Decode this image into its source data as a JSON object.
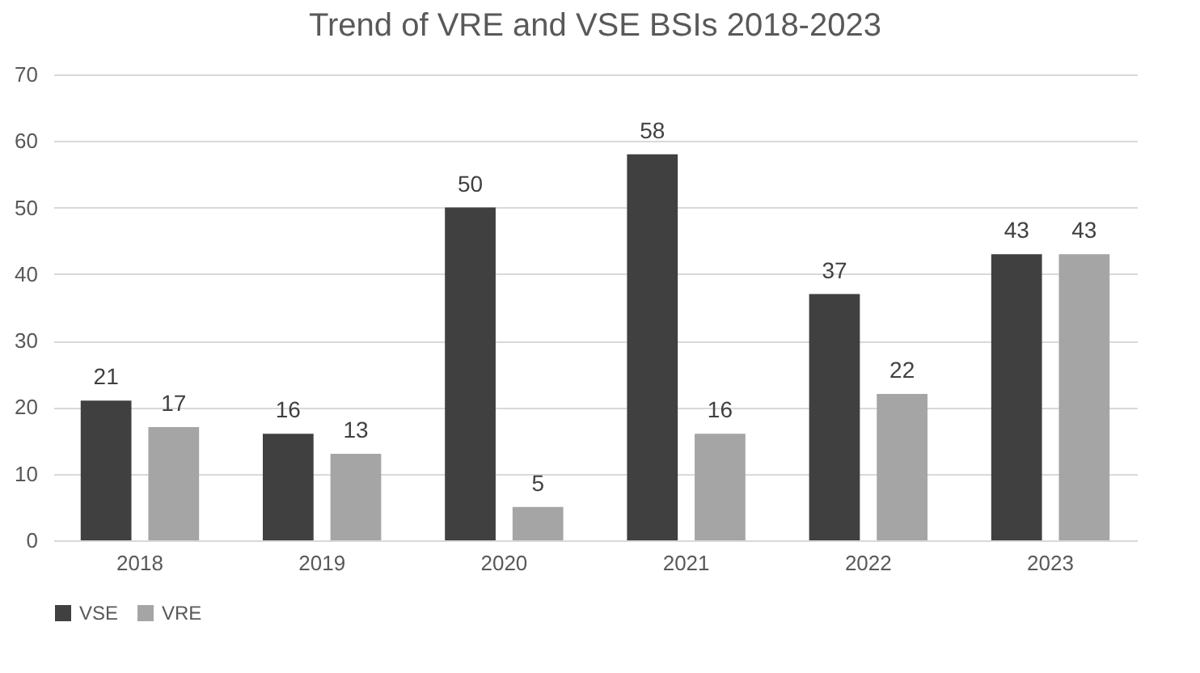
{
  "chart_data": {
    "type": "bar",
    "title": "Trend of VRE and VSE BSIs 2018-2023",
    "categories": [
      "2018",
      "2019",
      "2020",
      "2021",
      "2022",
      "2023"
    ],
    "series": [
      {
        "name": "VSE",
        "color": "#404040",
        "values": [
          21,
          16,
          50,
          58,
          37,
          43
        ]
      },
      {
        "name": "VRE",
        "color": "#a5a5a5",
        "values": [
          17,
          13,
          5,
          16,
          22,
          43
        ]
      }
    ],
    "ylim": [
      0,
      70
    ],
    "yticks": [
      0,
      10,
      20,
      30,
      40,
      50,
      60,
      70
    ],
    "grid": "y",
    "legend": "bottom",
    "data_labels": true
  }
}
